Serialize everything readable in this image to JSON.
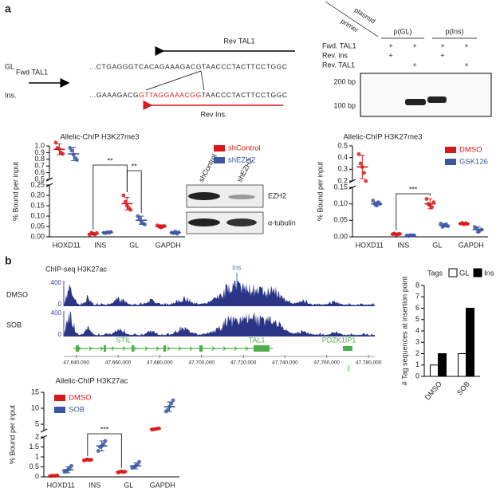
{
  "panel_labels": [
    "a",
    "b"
  ],
  "sequence": {
    "gl_label": "GL",
    "ins_label": "Ins.",
    "fwd": "Fwd TAL1",
    "rev": "Rev TAL1",
    "rev_ins": "Rev Ins.",
    "gl_seq": "...CTGAGGGTCACAGAAAGACGTAACCCTACTTCCTGGC",
    "ins_seq": [
      "...GAAAGACG",
      "GTTAGGAAACGG",
      "TAACCCTACTTCCTGGC"
    ]
  },
  "gel": {
    "header_top": "plasmid",
    "header_side": "primer",
    "plasmids": [
      "p(GL)",
      "p(Ins)"
    ],
    "rows": [
      {
        "name": "Fwd. TAL1",
        "marks": [
          "+",
          "+",
          "+",
          "+"
        ]
      },
      {
        "name": "Rev. ins",
        "marks": [
          "+",
          null,
          "+",
          null
        ]
      },
      {
        "name": "Rev. TAL1",
        "marks": [
          null,
          "+",
          null,
          "+"
        ]
      }
    ],
    "ladder": [
      "200 bp",
      "100 bp"
    ]
  },
  "western": {
    "lanes": [
      "shControl",
      "shEZH2"
    ],
    "proteins": [
      "EZH2",
      "α-tubulin"
    ]
  },
  "tracks": {
    "title": "ChIP-seq H3K27ac",
    "samples": [
      "DMSO",
      "SOB"
    ],
    "scale": [
      0,
      400
    ],
    "peak_label": "ins",
    "genes": [
      "STIL",
      "TAL1",
      "PDZK1IP1"
    ],
    "xlim": [
      47634000,
      47783000
    ],
    "xticks": [
      {
        "value": 47640000,
        "label": "47,640,000"
      },
      {
        "value": 47660000,
        "label": "47,660,000"
      },
      {
        "value": 47680000,
        "label": "47,680,000"
      },
      {
        "value": 47700000,
        "label": "47,700,000"
      },
      {
        "value": 47720000,
        "label": "47,720,000"
      },
      {
        "value": 47740000,
        "label": "47,740,000"
      },
      {
        "value": 47760000,
        "label": "47,760,000"
      },
      {
        "value": 47780000,
        "label": "47,780,000"
      }
    ]
  },
  "chart_data": [
    {
      "type": "dot",
      "title": "Allelic-ChIP H3K27me3",
      "ylabel": "% Bound per input",
      "categories": [
        "HOXD11",
        "INS",
        "GL",
        "GAPDH"
      ],
      "ylim": [
        0,
        1.0
      ],
      "axis_break": [
        0.25,
        0.5
      ],
      "yticks": [
        {
          "value": 0,
          "label": "0.00"
        },
        0.05,
        {
          "value": 0.1,
          "label": "0.10"
        },
        0.15,
        {
          "value": 0.2,
          "label": "0.20"
        },
        0.25,
        0.5,
        0.6,
        0.7,
        0.8,
        0.9,
        {
          "value": 1.0,
          "label": "1.0"
        }
      ],
      "series": [
        {
          "name": "shControl",
          "color": "#d7191c",
          "values": [
            0.95,
            0.015,
            0.16,
            0.05
          ],
          "errors": [
            0.08,
            0.005,
            0.03,
            0.008
          ],
          "points": [
            [
              1.05,
              0.97,
              0.95,
              0.9,
              0.88
            ],
            [
              0.01,
              0.02,
              0.015,
              0.012,
              0.018
            ],
            [
              0.2,
              0.17,
              0.15,
              0.14,
              0.13
            ],
            [
              0.055,
              0.05,
              0.045,
              0.05,
              0.052
            ]
          ]
        },
        {
          "name": "shEZH2",
          "color": "#3a56a5",
          "values": [
            0.88,
            0.02,
            0.08,
            0.02
          ],
          "errors": [
            0.1,
            0.004,
            0.02,
            0.005
          ],
          "points": [
            [
              0.97,
              0.93,
              0.87,
              0.82,
              0.79
            ],
            [
              0.02,
              0.018,
              0.022,
              0.02,
              0.024
            ],
            [
              0.1,
              0.09,
              0.07,
              0.065,
              0.06
            ],
            [
              0.02,
              0.018,
              0.025,
              0.015,
              0.022
            ]
          ]
        }
      ],
      "annotations": [
        "**",
        "**"
      ]
    },
    {
      "type": "dot",
      "title": "Allelic-ChIP H3K27me3",
      "ylabel": "% Bound per input",
      "categories": [
        "HOXD11",
        "INS",
        "GL",
        "GAPDH"
      ],
      "ylim": [
        0,
        0.5
      ],
      "axis_break": [
        0.15,
        0.2
      ],
      "yticks": [
        {
          "value": 0,
          "label": "0.00"
        },
        0.05,
        {
          "value": 0.1,
          "label": "0.10"
        },
        0.15,
        0.2,
        0.3,
        0.4,
        0.5
      ],
      "series": [
        {
          "name": "DMSO",
          "color": "#d7191c",
          "values": [
            0.32,
            0.008,
            0.1,
            0.04
          ],
          "errors": [
            0.1,
            0.003,
            0.015,
            0.004
          ],
          "points": [
            [
              0.43,
              0.35,
              0.32,
              0.27,
              0.2
            ],
            [
              0.008,
              0.01,
              0.006,
              0.008,
              0.009
            ],
            [
              0.115,
              0.1,
              0.095,
              0.09,
              0.105
            ],
            [
              0.04,
              0.042,
              0.038,
              0.041,
              0.039
            ]
          ]
        },
        {
          "name": "GSK126",
          "color": "#3a56a5",
          "values": [
            0.1,
            0.004,
            0.035,
            0.022
          ],
          "errors": [
            0.006,
            0.002,
            0.005,
            0.008
          ],
          "points": [
            [
              0.11,
              0.1,
              0.095,
              0.105,
              0.1
            ],
            [
              0.004,
              0.003,
              0.005,
              0.004,
              0.005
            ],
            [
              0.04,
              0.03,
              0.035,
              0.038,
              0.032
            ],
            [
              0.03,
              0.025,
              0.015,
              0.02,
              0.022
            ]
          ]
        }
      ],
      "annotations": [
        "***"
      ]
    },
    {
      "type": "dot",
      "title": "Allelic-ChIP H3K27ac",
      "ylabel": "% Bound per input",
      "categories": [
        "HOXD11",
        "INS",
        "GL",
        "GAPDH"
      ],
      "ylim": [
        0,
        15
      ],
      "axis_break": [
        2,
        3
      ],
      "yticks": [
        0,
        0.5,
        1,
        1.5,
        2,
        5,
        10,
        15
      ],
      "series": [
        {
          "name": "DMSO",
          "color": "#d7191c",
          "values": [
            0.05,
            0.85,
            0.25,
            3.5
          ],
          "errors": [
            0.02,
            0.04,
            0.04,
            0.15
          ],
          "points": [
            [
              0.04,
              0.05,
              0.06,
              0.05,
              0.07
            ],
            [
              0.82,
              0.85,
              0.88,
              0.84,
              0.86
            ],
            [
              0.22,
              0.25,
              0.28,
              0.24,
              0.26
            ],
            [
              3.3,
              3.4,
              3.5,
              3.6,
              3.7
            ]
          ]
        },
        {
          "name": "SOB",
          "color": "#3a56a5",
          "values": [
            0.35,
            1.55,
            0.55,
            10.5
          ],
          "errors": [
            0.15,
            0.25,
            0.15,
            1.5
          ],
          "points": [
            [
              0.25,
              0.3,
              0.35,
              0.45,
              0.55
            ],
            [
              1.3,
              1.5,
              1.55,
              1.65,
              1.8
            ],
            [
              0.45,
              0.5,
              0.55,
              0.6,
              0.75
            ],
            [
              9,
              9.5,
              10.5,
              11.5,
              12.5
            ]
          ]
        }
      ],
      "annotations": [
        "***"
      ]
    },
    {
      "type": "bar",
      "legend_title": "Tags",
      "ylabel": "# Tag sequences at insertion point",
      "categories": [
        "DMSO",
        "SOB"
      ],
      "ylim": [
        0,
        8
      ],
      "yticks": [
        0,
        1,
        2,
        3,
        4,
        5,
        6,
        7,
        8
      ],
      "series": [
        {
          "name": "GL",
          "color": "#ffffff",
          "values": [
            1,
            2
          ]
        },
        {
          "name": "Ins",
          "color": "#000000",
          "values": [
            2,
            6
          ]
        }
      ]
    }
  ]
}
